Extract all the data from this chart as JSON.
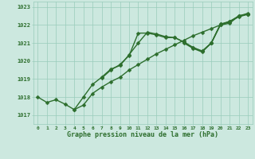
{
  "title": "Graphe pression niveau de la mer (hPa)",
  "xlabel_hours": [
    0,
    1,
    2,
    3,
    4,
    5,
    6,
    7,
    8,
    9,
    10,
    11,
    12,
    13,
    14,
    15,
    16,
    17,
    18,
    19,
    20,
    21,
    22,
    23
  ],
  "ylim": [
    1016.5,
    1023.3
  ],
  "yticks": [
    1017,
    1018,
    1019,
    1020,
    1021,
    1022,
    1023
  ],
  "bg_color": "#cce8df",
  "grid_color": "#99ccbb",
  "line_color": "#2d6e2d",
  "lines": [
    [
      1018.0,
      1017.7,
      1017.85,
      1017.6,
      1017.3,
      1017.55,
      1018.2,
      1018.55,
      1018.85,
      1019.1,
      1019.5,
      1019.8,
      1020.1,
      1020.4,
      1020.65,
      1020.9,
      1021.15,
      1021.4,
      1021.6,
      1021.8,
      1022.0,
      1022.2,
      1022.45,
      1022.6
    ],
    [
      null,
      null,
      null,
      null,
      1017.3,
      1018.0,
      1018.7,
      1019.1,
      1019.55,
      1019.75,
      1020.35,
      1021.0,
      1021.6,
      1021.5,
      1021.35,
      1021.3,
      1021.05,
      1020.75,
      1020.55,
      1021.0,
      1022.05,
      1022.15,
      1022.5,
      1022.6
    ],
    [
      null,
      null,
      null,
      null,
      null,
      null,
      null,
      1019.05,
      1019.5,
      1019.8,
      1020.3,
      1021.55,
      1021.55,
      1021.45,
      1021.3,
      1021.3,
      1021.05,
      1020.75,
      1020.55,
      1021.0,
      1022.05,
      1022.2,
      1022.5,
      1022.6
    ],
    [
      null,
      null,
      null,
      null,
      null,
      null,
      null,
      null,
      null,
      null,
      null,
      null,
      null,
      null,
      null,
      null,
      1021.0,
      1020.7,
      1020.5,
      1021.0,
      1022.0,
      1022.1,
      1022.5,
      1022.65
    ]
  ],
  "marker_size": 2.5,
  "line_width": 1.0
}
